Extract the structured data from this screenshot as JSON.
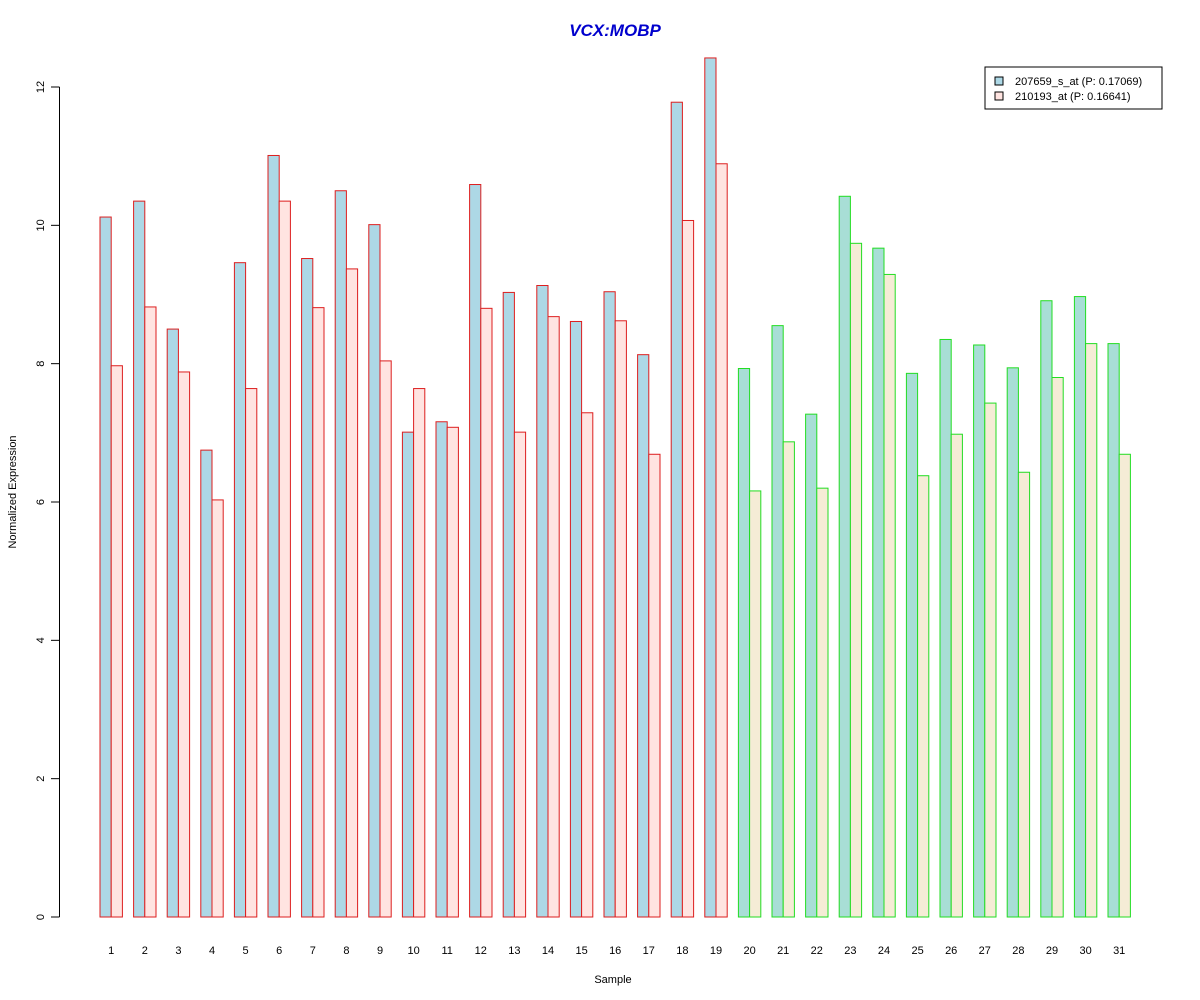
{
  "chart_data": {
    "type": "bar",
    "title": "VCX:MOBP",
    "xlabel": "Sample",
    "ylabel": "Normalized Expression",
    "ylim": [
      0,
      12
    ],
    "yticks": [
      0,
      2,
      4,
      6,
      8,
      10,
      12
    ],
    "grid": false,
    "legend_position": "top-right",
    "categories": [
      "1",
      "2",
      "3",
      "4",
      "5",
      "6",
      "7",
      "8",
      "9",
      "10",
      "11",
      "12",
      "13",
      "14",
      "15",
      "16",
      "17",
      "18",
      "19",
      "20",
      "21",
      "22",
      "23",
      "24",
      "25",
      "26",
      "27",
      "28",
      "29",
      "30",
      "31"
    ],
    "series": [
      {
        "name": "207659_s_at (P: 0.17069)",
        "values": [
          10.12,
          10.35,
          8.5,
          6.75,
          9.46,
          11.01,
          9.52,
          10.5,
          10.01,
          7.01,
          7.16,
          10.59,
          9.03,
          9.13,
          8.61,
          9.04,
          8.13,
          11.78,
          12.42,
          7.93,
          8.55,
          7.27,
          10.42,
          9.67,
          7.86,
          8.35,
          8.27,
          7.94,
          8.91,
          8.97,
          8.29
        ]
      },
      {
        "name": "210193_at (P: 0.16641)",
        "values": [
          7.97,
          8.82,
          7.88,
          6.03,
          7.64,
          10.35,
          8.81,
          9.37,
          8.04,
          7.64,
          7.08,
          8.8,
          7.01,
          8.68,
          7.29,
          8.62,
          6.69,
          10.07,
          10.89,
          6.16,
          6.87,
          6.2,
          9.74,
          9.29,
          6.38,
          6.98,
          7.43,
          6.43,
          7.8,
          8.29,
          6.69
        ]
      }
    ],
    "groups": [
      {
        "samples": [
          1,
          19
        ],
        "border_color": "#dd1e1e",
        "fills": [
          "#add8e6",
          "#ffe4e1"
        ]
      },
      {
        "samples": [
          20,
          31
        ],
        "border_color": "#22dd22",
        "fills": [
          "#a8ded6",
          "#f5ecd6"
        ]
      }
    ],
    "colors": {
      "title": "#0000cd",
      "axis": "#000000",
      "legend_border": "#000000"
    }
  }
}
